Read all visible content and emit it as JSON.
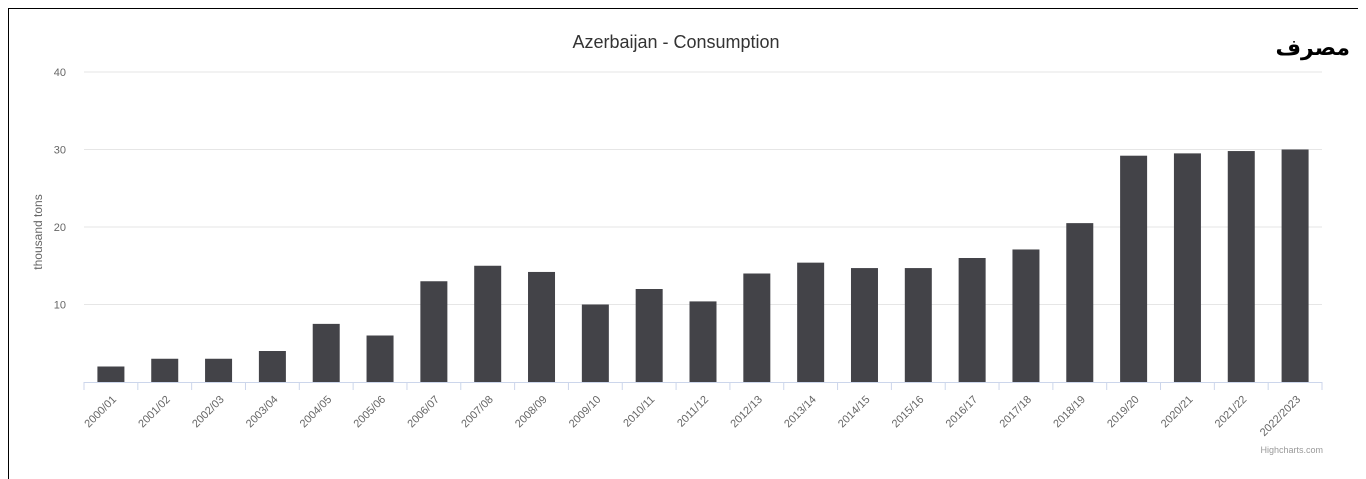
{
  "side_label": "مصرف",
  "credits": "Highcharts.com",
  "colors": {
    "bar": "#434348",
    "grid": "#e6e6e6",
    "axis": "#ccd6eb",
    "text": "#666666"
  },
  "chart_data": {
    "type": "bar",
    "title": "Azerbaijan - Consumption",
    "xlabel": "",
    "ylabel": "thousand tons",
    "ylim": [
      0,
      40
    ],
    "yticks": [
      10,
      20,
      30,
      40
    ],
    "grid": true,
    "legend": "none",
    "categories": [
      "2000/01",
      "2001/02",
      "2002/03",
      "2003/04",
      "2004/05",
      "2005/06",
      "2006/07",
      "2007/08",
      "2008/09",
      "2009/10",
      "2010/11",
      "2011/12",
      "2012/13",
      "2013/14",
      "2014/15",
      "2015/16",
      "2016/17",
      "2017/18",
      "2018/19",
      "2019/20",
      "2020/21",
      "2021/22",
      "2022/2023"
    ],
    "values": [
      2,
      3,
      3,
      4,
      7.5,
      6,
      13,
      15,
      14.2,
      10,
      12,
      10.4,
      14,
      15.4,
      14.7,
      14.7,
      16,
      17.1,
      20.5,
      29.2,
      29.5,
      29.8,
      30
    ]
  }
}
